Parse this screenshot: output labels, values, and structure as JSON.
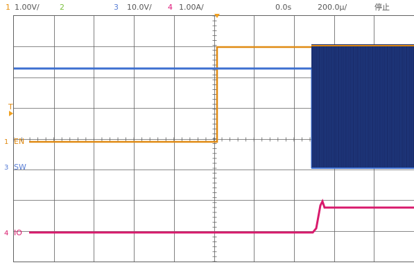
{
  "status_bar": {
    "ch1": {
      "num": "1",
      "scale": "1.00V/",
      "color": "#e8900a"
    },
    "ch2": {
      "num": "2",
      "scale": "",
      "color": "#7cc040"
    },
    "ch3": {
      "num": "3",
      "scale": "10.0V/",
      "color": "#5a7fd6"
    },
    "ch4": {
      "num": "4",
      "scale": "1.00A/",
      "color": "#e0187a"
    },
    "delay": "0.0s",
    "timebase": "200.0µ/",
    "run_state": "停止"
  },
  "markers": {
    "trigger": "T",
    "ch1": {
      "num": "1",
      "label": "EN"
    },
    "ch3": {
      "num": "3",
      "label": "SW"
    },
    "ch4": {
      "num": "4",
      "label": "IO"
    }
  },
  "colors": {
    "ch1_trace": "#e08a12",
    "ch3_trace": "#3d6fd0",
    "ch3_fill": "#1a2e6e",
    "ch4_trace": "#d81a6c",
    "grid": "#606060",
    "trigger_marker": "#f0a020"
  }
}
